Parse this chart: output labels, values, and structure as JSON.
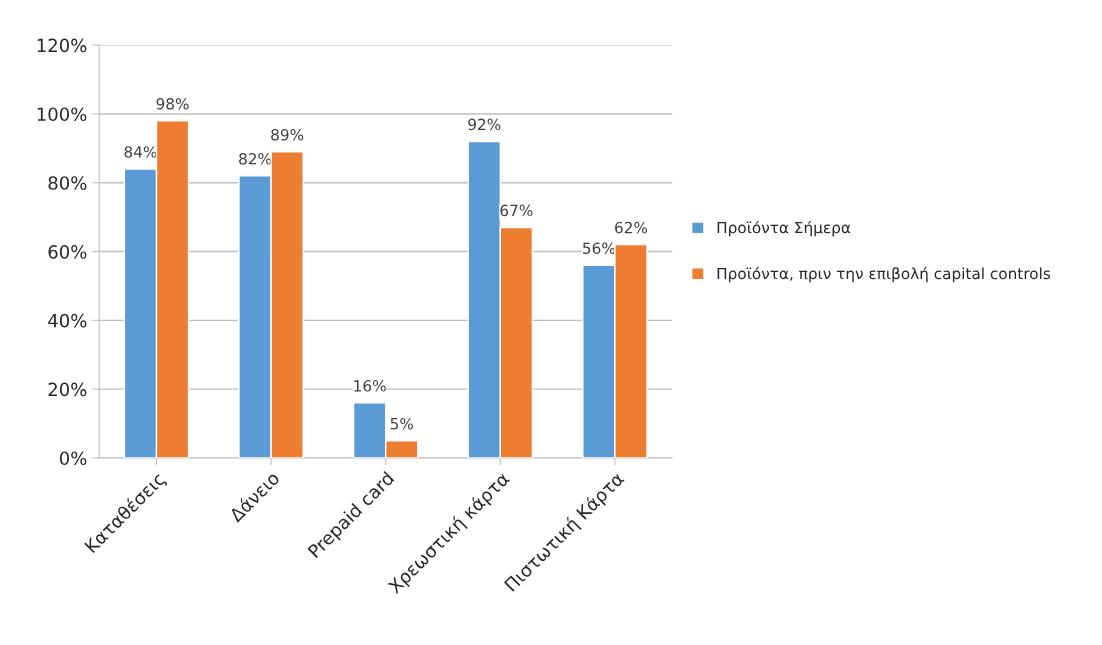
{
  "chart_data": {
    "type": "bar",
    "categories": [
      "Καταθέσεις",
      "Δάνειο",
      "Prepaid card",
      "Χρεωστική κάρτα",
      "Πιστωτική Κάρτα"
    ],
    "series": [
      {
        "name": "Προϊόντα Σήμερα",
        "color": "#5b9bd5",
        "values": [
          84,
          82,
          16,
          92,
          56
        ],
        "value_labels": [
          "84%",
          "82%",
          "16%",
          "92%",
          "56%"
        ]
      },
      {
        "name": "Προϊόντα, πριν την επιβολή capital controls",
        "color": "#ed7d31",
        "values": [
          98,
          89,
          5,
          67,
          62
        ],
        "value_labels": [
          "98%",
          "89%",
          "5%",
          "67%",
          "62%"
        ]
      }
    ],
    "ylim": [
      0,
      120
    ],
    "yticks": [
      {
        "value": 0,
        "label": "0%"
      },
      {
        "value": 20,
        "label": "20%"
      },
      {
        "value": 40,
        "label": "40%"
      },
      {
        "value": 60,
        "label": "60%"
      },
      {
        "value": 80,
        "label": "80%"
      },
      {
        "value": 100,
        "label": "100%"
      },
      {
        "value": 120,
        "label": "120%"
      }
    ],
    "grid": "y",
    "legend": "right"
  }
}
